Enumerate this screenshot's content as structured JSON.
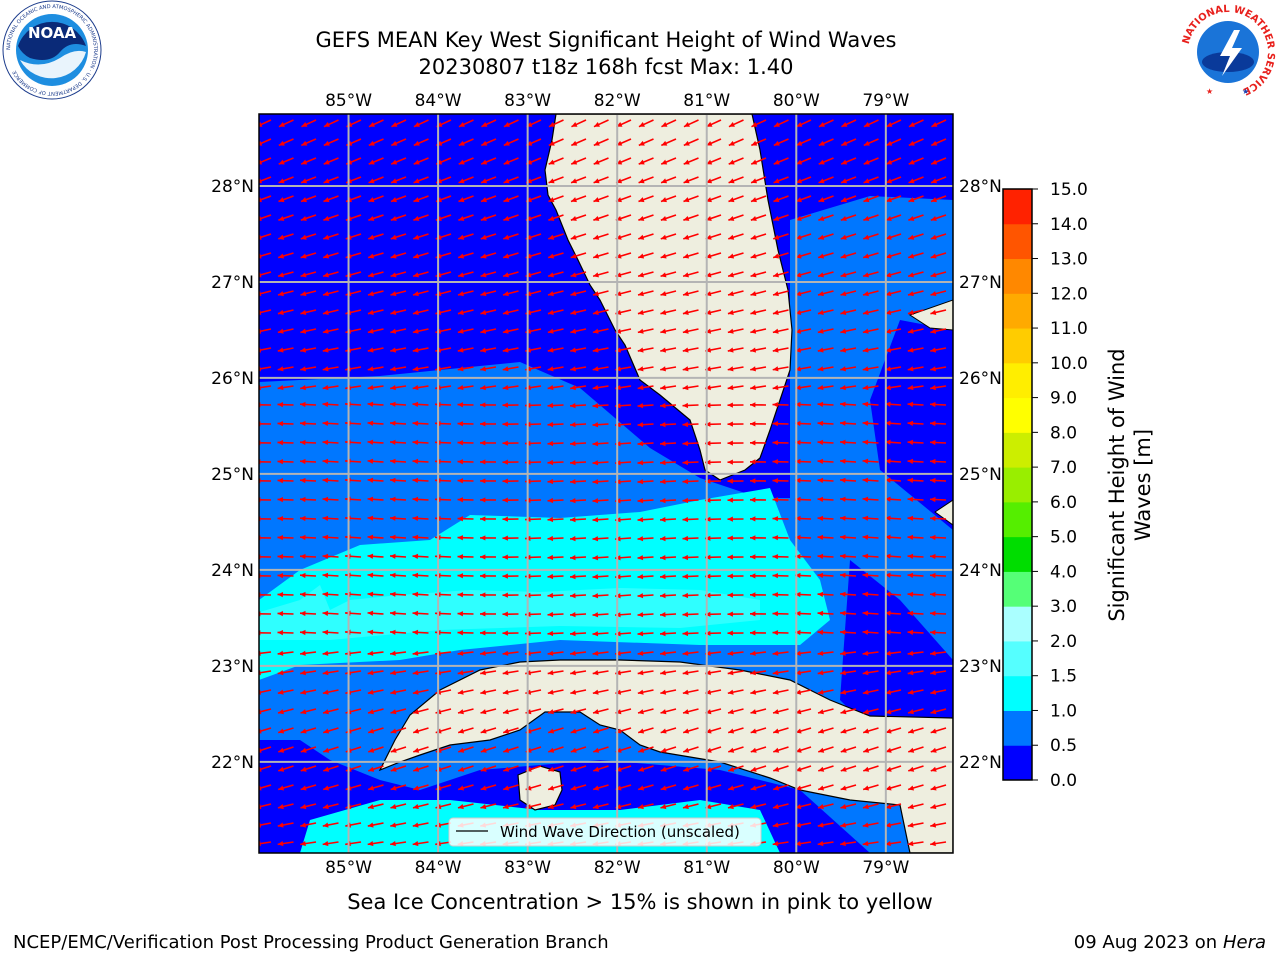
{
  "header": {
    "title_line1": "GEFS MEAN Key West Significant Height of Wind Waves",
    "title_line2": "20230807 t18z 168h fcst   Max: 1.40"
  },
  "logos": {
    "noaa_text": "NOAA",
    "noaa_ring_text": "NATIONAL OCEANIC AND ATMOSPHERIC ADMINISTRATION · U.S. DEPARTMENT OF COMMERCE",
    "nws_ring_text": "NATIONAL WEATHER SERVICE"
  },
  "map": {
    "lon_labels": [
      "85°W",
      "84°W",
      "83°W",
      "82°W",
      "81°W",
      "80°W",
      "79°W"
    ],
    "lat_labels": [
      "28°N",
      "27°N",
      "26°N",
      "25°N",
      "24°N",
      "23°N",
      "22°N"
    ],
    "lon_range": [
      -86.0,
      -78.25
    ],
    "lat_range": [
      21.05,
      28.75
    ],
    "land_color": "#eeeedf",
    "arrow_color": "#ff0000",
    "legend_label": "Wind Wave Direction (unscaled)"
  },
  "colorbar": {
    "label": "Significant Height of Wind Waves [m]",
    "ticks": [
      "15.0",
      "14.0",
      "13.0",
      "12.0",
      "11.0",
      "10.0",
      "9.0",
      "8.0",
      "7.0",
      "6.0",
      "5.0",
      "4.0",
      "3.0",
      "2.0",
      "1.5",
      "1.0",
      "0.5",
      "0.0"
    ],
    "colors": [
      "#0000ff",
      "#0077ff",
      "#00ffff",
      "#55ffff",
      "#aaffff",
      "#55ff77",
      "#00dd00",
      "#55ee00",
      "#99ee00",
      "#ccee00",
      "#ffff00",
      "#ffee00",
      "#ffcc00",
      "#ffaa00",
      "#ff8800",
      "#ff5500",
      "#ff2200"
    ]
  },
  "footer": {
    "ice_note": "Sea Ice Concentration > 15% is shown in pink to yellow",
    "left": "NCEP/EMC/Verification Post Processing Product Generation Branch",
    "right_date": "09 Aug 2023 on",
    "right_host": "Hera"
  }
}
